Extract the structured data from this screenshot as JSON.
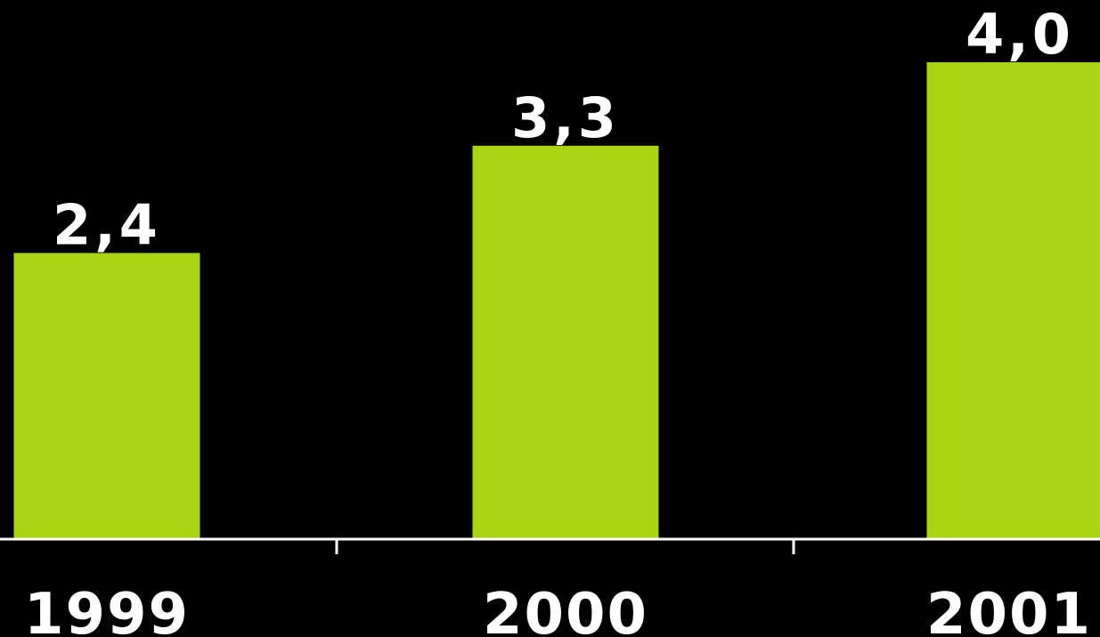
{
  "chart_data": {
    "type": "bar",
    "categories": [
      "1999",
      "2000",
      "2001"
    ],
    "values": [
      2.4,
      3.3,
      4.0
    ],
    "value_labels": [
      "2,4",
      "3,3",
      "4,0"
    ],
    "title": "",
    "xlabel": "",
    "ylabel": "",
    "ylim": [
      0,
      4.5
    ],
    "grid": false,
    "bar_color": "#a8d414",
    "text_color": "#ffffff",
    "background": "#000000"
  }
}
